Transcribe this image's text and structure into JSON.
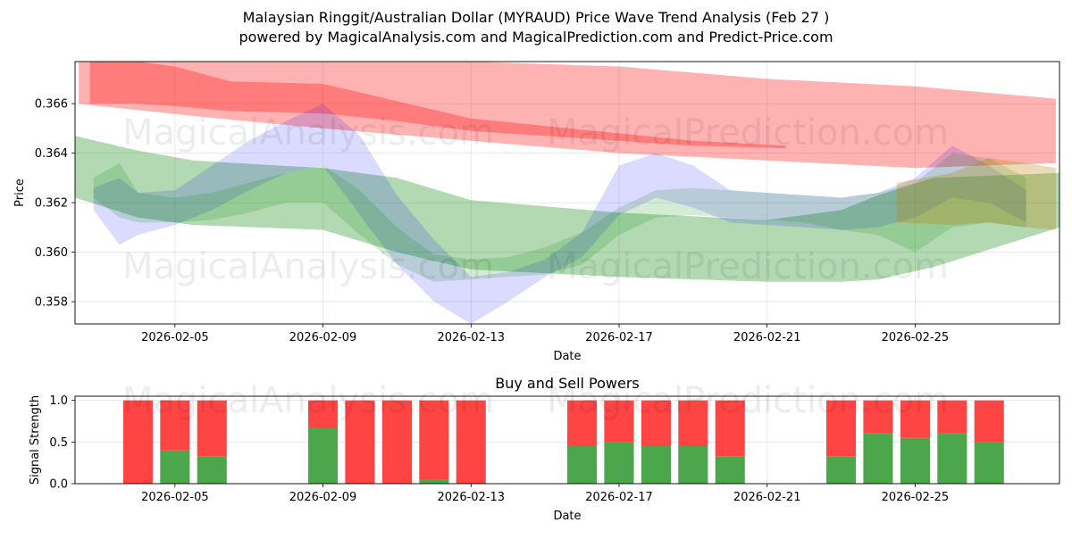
{
  "chart_data": [
    {
      "type": "area",
      "title_line1": "Malaysian Ringgit/Australian Dollar (MYRAUD) Price Wave Trend Analysis (Feb 27 )",
      "title_line2": "powered by MagicalAnalysis.com and MagicalPrediction.com and Predict-Price.com",
      "xlabel": "Date",
      "ylabel": "Price",
      "x_start": "2026-02-02",
      "x_range_days": [
        0.3,
        26.9
      ],
      "ylim": [
        0.3571,
        0.3677
      ],
      "xtick_labels": [
        "2026-02-05",
        "2026-02-09",
        "2026-02-13",
        "2026-02-17",
        "2026-02-21",
        "2026-02-25"
      ],
      "xtick_days": [
        3,
        7,
        11,
        15,
        19,
        23
      ],
      "ytick_labels": [
        "0.358",
        "0.360",
        "0.362",
        "0.364",
        "0.366"
      ],
      "ytick_values": [
        0.358,
        0.36,
        0.362,
        0.364,
        0.366
      ],
      "watermarks": [
        "MagicalAnalysis.com",
        "MagicalPrediction.com",
        "MagicalAnalysis.com",
        "MagicalPrediction.com"
      ],
      "series": [
        {
          "name": "red-wave-band-wide",
          "color": "#ff0000",
          "opacity": 0.3,
          "x": [
            0.4,
            3.5,
            7.0,
            11.0,
            15.0,
            19.0,
            23.0,
            26.8
          ],
          "upper": [
            0.3679,
            0.3679,
            0.3679,
            0.3678,
            0.3675,
            0.367,
            0.3667,
            0.3662
          ],
          "lower": [
            0.366,
            0.3655,
            0.365,
            0.3645,
            0.364,
            0.3637,
            0.3634,
            0.3636
          ]
        },
        {
          "name": "red-wave-band-narrow",
          "color": "#ff0000",
          "opacity": 0.3,
          "x": [
            0.7,
            2.0,
            3.0,
            4.5,
            7.0,
            9.0,
            11.0,
            13.0,
            15.0,
            17.0,
            19.5
          ],
          "upper": [
            0.3679,
            0.3679,
            0.3675,
            0.3669,
            0.3668,
            0.3661,
            0.3654,
            0.3651,
            0.3648,
            0.3645,
            0.3643
          ],
          "lower": [
            0.366,
            0.366,
            0.3659,
            0.3657,
            0.3656,
            0.3653,
            0.3649,
            0.3647,
            0.3645,
            0.3643,
            0.3642
          ]
        },
        {
          "name": "green-wave-band-wide",
          "color": "#008000",
          "opacity": 0.3,
          "x": [
            0.3,
            2.0,
            3.5,
            7.0,
            9.0,
            11.0,
            15.0,
            19.0,
            21.0,
            22.0,
            23.5,
            26.9
          ],
          "upper": [
            0.3647,
            0.3641,
            0.3637,
            0.3634,
            0.363,
            0.3621,
            0.3616,
            0.3613,
            0.3617,
            0.3623,
            0.363,
            0.3632
          ],
          "lower": [
            0.3622,
            0.3614,
            0.3611,
            0.3609,
            0.36,
            0.3593,
            0.359,
            0.3588,
            0.3588,
            0.3589,
            0.3594,
            0.361
          ]
        },
        {
          "name": "blue-wave-band",
          "color": "#0000ff",
          "opacity": 0.14,
          "x": [
            0.8,
            1.5,
            2.0,
            3.0,
            4.0,
            5.0,
            6.0,
            7.0,
            8.0,
            9.0,
            10.0,
            11.0,
            12.0,
            13.0,
            14.0,
            15.0,
            16.0,
            17.0,
            18.0,
            19.0,
            20.0,
            21.0,
            22.0,
            23.0,
            24.0,
            25.0,
            26.0
          ],
          "upper": [
            0.3626,
            0.363,
            0.3624,
            0.3625,
            0.3635,
            0.3645,
            0.3653,
            0.366,
            0.3647,
            0.3623,
            0.3605,
            0.359,
            0.3592,
            0.3597,
            0.3608,
            0.3635,
            0.364,
            0.3635,
            0.3625,
            0.3624,
            0.3623,
            0.3622,
            0.3624,
            0.363,
            0.3643,
            0.3635,
            0.3625
          ],
          "lower": [
            0.3617,
            0.3603,
            0.3607,
            0.3611,
            0.3617,
            0.3625,
            0.3632,
            0.3635,
            0.3615,
            0.3595,
            0.358,
            0.357,
            0.358,
            0.359,
            0.3598,
            0.3615,
            0.3622,
            0.3618,
            0.3612,
            0.3611,
            0.361,
            0.3609,
            0.361,
            0.3614,
            0.3622,
            0.362,
            0.3612
          ]
        },
        {
          "name": "green-wave-band",
          "color": "#008000",
          "opacity": 0.16,
          "x": [
            0.8,
            1.5,
            2.0,
            3.0,
            4.0,
            5.0,
            6.0,
            7.0,
            8.0,
            9.0,
            10.0,
            11.0,
            12.0,
            13.0,
            14.0,
            15.0,
            16.0,
            17.0,
            18.0,
            19.0,
            20.0,
            21.0,
            22.0,
            23.0,
            24.0,
            25.0,
            26.0
          ],
          "upper": [
            0.363,
            0.3636,
            0.3624,
            0.3622,
            0.3624,
            0.3628,
            0.3632,
            0.3635,
            0.3625,
            0.361,
            0.3599,
            0.3597,
            0.3598,
            0.3602,
            0.3608,
            0.3618,
            0.3625,
            0.3626,
            0.3625,
            0.3624,
            0.3623,
            0.3622,
            0.3624,
            0.3628,
            0.364,
            0.3638,
            0.363
          ],
          "lower": [
            0.3622,
            0.3614,
            0.3612,
            0.3612,
            0.3613,
            0.3616,
            0.362,
            0.362,
            0.3607,
            0.3595,
            0.3588,
            0.3589,
            0.359,
            0.3591,
            0.3595,
            0.3607,
            0.3614,
            0.3615,
            0.3614,
            0.3613,
            0.3612,
            0.3609,
            0.3607,
            0.36,
            0.361,
            0.3612,
            0.361
          ]
        },
        {
          "name": "brown-wave-band",
          "color": "#b8860b",
          "opacity": 0.3,
          "x": [
            22.5,
            24.0,
            25.0,
            26.0,
            26.8
          ],
          "upper": [
            0.3628,
            0.3632,
            0.3638,
            0.3636,
            0.3634
          ],
          "lower": [
            0.3612,
            0.3611,
            0.3612,
            0.361,
            0.3609
          ]
        }
      ]
    },
    {
      "type": "bar",
      "title": "Buy and Sell Powers",
      "xlabel": "Date",
      "ylabel": "Signal Strength",
      "ylim": [
        0,
        1.05
      ],
      "ytick_labels": [
        "0.0",
        "0.5",
        "1.0"
      ],
      "ytick_values": [
        0,
        0.5,
        1.0
      ],
      "xtick_labels": [
        "2026-02-05",
        "2026-02-09",
        "2026-02-13",
        "2026-02-17",
        "2026-02-21",
        "2026-02-25"
      ],
      "xtick_days": [
        3,
        7,
        11,
        15,
        19,
        23
      ],
      "buy_color": "#4ca64c",
      "sell_color": "#ff4444",
      "days": [
        2,
        3,
        4,
        7,
        8,
        9,
        10,
        11,
        14,
        15,
        16,
        17,
        18,
        21,
        22,
        23,
        24,
        25
      ],
      "buy": [
        0,
        0.4,
        0.33,
        0.67,
        0,
        0,
        0.05,
        0,
        0.45,
        0.5,
        0.45,
        0.45,
        0.33,
        0.33,
        0.61,
        0.55,
        0.61,
        0.5
      ],
      "sell": [
        1.0,
        0.6,
        0.67,
        0.33,
        1.0,
        1.0,
        0.95,
        1.0,
        0.55,
        0.5,
        0.55,
        0.55,
        0.67,
        0.67,
        0.39,
        0.45,
        0.39,
        0.5
      ]
    }
  ]
}
